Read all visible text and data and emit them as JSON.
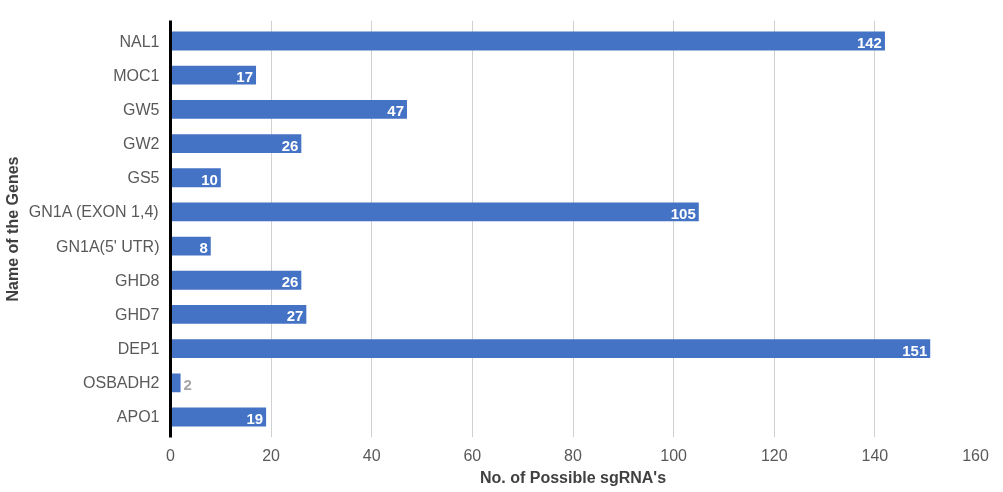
{
  "chart_data": {
    "type": "bar",
    "orientation": "horizontal",
    "xlabel": "No. of Possible sgRNA's",
    "ylabel": "Name of the Genes",
    "categories": [
      "NAL1",
      "MOC1",
      "GW5",
      "GW2",
      "GS5",
      "GN1A (EXON 1,4)",
      "GN1A(5' UTR)",
      "GHD8",
      "GHD7",
      "DEP1",
      "OSBADH2",
      "APO1"
    ],
    "values": [
      142,
      17,
      47,
      26,
      10,
      105,
      8,
      26,
      27,
      151,
      2,
      19
    ],
    "color": "#4472c4",
    "xlim": [
      0,
      160
    ],
    "xticks": [
      0,
      20,
      40,
      60,
      80,
      100,
      120,
      140,
      160
    ],
    "grid": "x",
    "data_labels": true
  }
}
